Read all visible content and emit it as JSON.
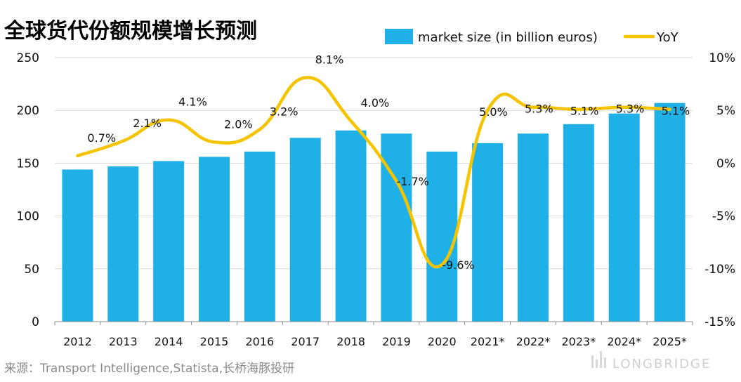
{
  "chart_data": {
    "type": "bar",
    "title": "全球货代份额规模增长预测",
    "categories": [
      "2012",
      "2013",
      "2014",
      "2015",
      "2016",
      "2017",
      "2018",
      "2019",
      "2020",
      "2021*",
      "2022*",
      "2023*",
      "2024*",
      "2025*"
    ],
    "series": [
      {
        "name": "market size (in billion euros)",
        "type": "bar",
        "axis": "left",
        "color": "#1FB0E8",
        "values": [
          144,
          147,
          152,
          156,
          161,
          174,
          181,
          178,
          161,
          169,
          178,
          187,
          197,
          207
        ]
      },
      {
        "name": "YoY",
        "type": "line",
        "axis": "right",
        "color": "#F5C400",
        "values": [
          0.7,
          2.1,
          4.1,
          2.0,
          3.2,
          8.1,
          4.0,
          -1.7,
          -9.6,
          5.0,
          5.3,
          5.1,
          5.3,
          5.1
        ],
        "labels": [
          "0.7%",
          "2.1%",
          "4.1%",
          "2.0%",
          "3.2%",
          "8.1%",
          "4.0%",
          "-1.7%",
          "-9.6%",
          "5.0%",
          "5.3%",
          "5.1%",
          "5.3%",
          "5.1%"
        ]
      }
    ],
    "y_left": {
      "min": 0,
      "max": 250,
      "ticks": [
        "0",
        "50",
        "100",
        "150",
        "200",
        "250"
      ]
    },
    "y_right": {
      "min": -15,
      "max": 10,
      "ticks": [
        "-15%",
        "-10%",
        "-5%",
        "0%",
        "5%",
        "10%"
      ]
    },
    "grid": true,
    "legend": "top-right"
  },
  "source": "来源：Transport Intelligence,Statista,长桥海豚投研",
  "brand": "LONGBRIDGE"
}
